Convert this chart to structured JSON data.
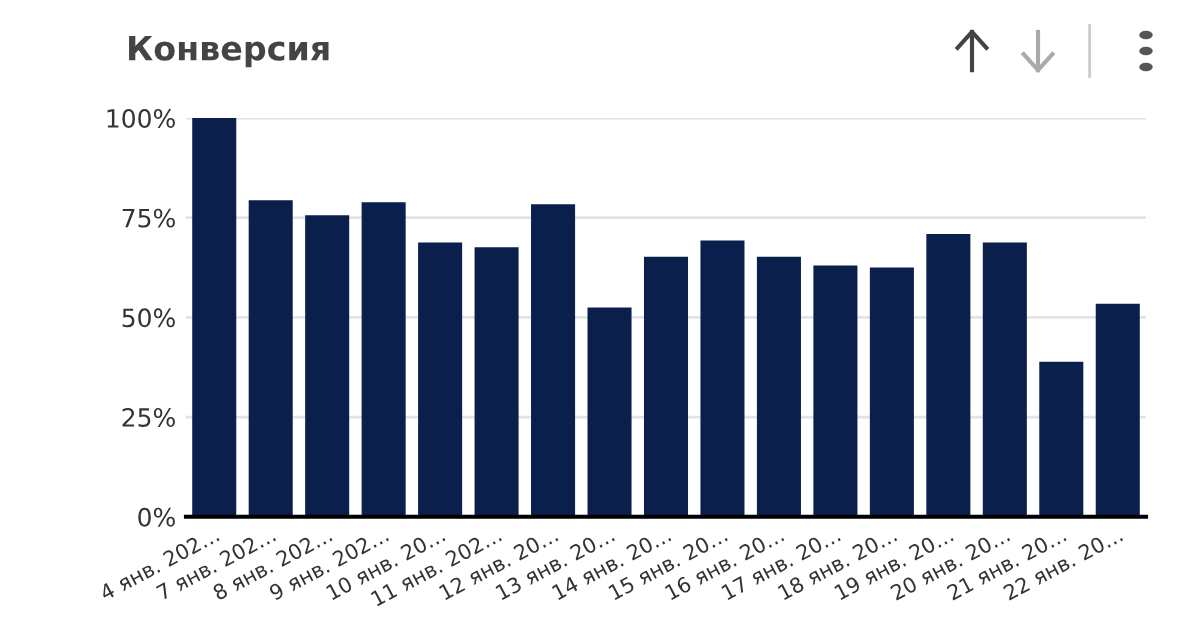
{
  "chart_data": {
    "type": "bar",
    "title": "Конверсия",
    "categories": [
      "4 янв. 202…",
      "7 янв. 202…",
      "8 янв. 202…",
      "9 янв. 202…",
      "10 янв. 20…",
      "11 янв. 202…",
      "12 янв. 20…",
      "13 янв. 20…",
      "14 янв. 20…",
      "15 янв. 20…",
      "16 янв. 20…",
      "17 янв. 20…",
      "18 янв. 20…",
      "19 янв. 20…",
      "20 янв. 20…",
      "21 янв. 20…",
      "22 янв. 20…"
    ],
    "values": [
      100,
      79.4,
      75.6,
      78.9,
      68.8,
      67.6,
      78.4,
      52.5,
      65.2,
      69.3,
      65.2,
      63.0,
      62.5,
      70.9,
      68.8,
      38.9,
      53.4
    ],
    "color": "#0b1f4d",
    "ylim": [
      0,
      100
    ],
    "yticks": [
      {
        "value": 0,
        "label": "0%"
      },
      {
        "value": 25,
        "label": "25%"
      },
      {
        "value": 50,
        "label": "50%"
      },
      {
        "value": 75,
        "label": "75%"
      },
      {
        "value": 100,
        "label": "100%"
      }
    ],
    "grid": "y"
  }
}
